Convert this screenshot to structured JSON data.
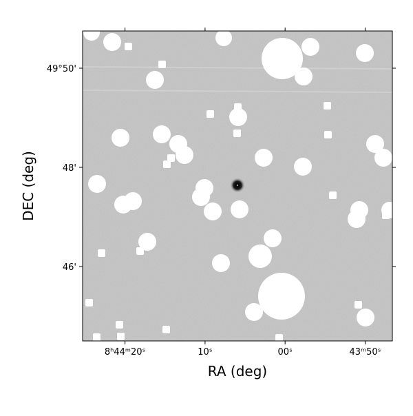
{
  "chart_data": {
    "type": "image",
    "xlabel": "RA (deg)",
    "ylabel": "DEC (deg)",
    "xlim": [
      85.3,
      46.6
    ],
    "xticks": [
      {
        "value": 80,
        "label": "8ʰ44ᵐ20ˢ"
      },
      {
        "value": 70,
        "label": "10ˢ"
      },
      {
        "value": 60,
        "label": "00ˢ"
      },
      {
        "value": 50,
        "label": "43ᵐ50ˢ"
      }
    ],
    "ylim": [
      44.5,
      50.75
    ],
    "yticks": [
      {
        "value": 50,
        "label": "49°50'"
      },
      {
        "value": 48,
        "label": "48'"
      },
      {
        "value": 46,
        "label": "46'"
      }
    ]
  }
}
